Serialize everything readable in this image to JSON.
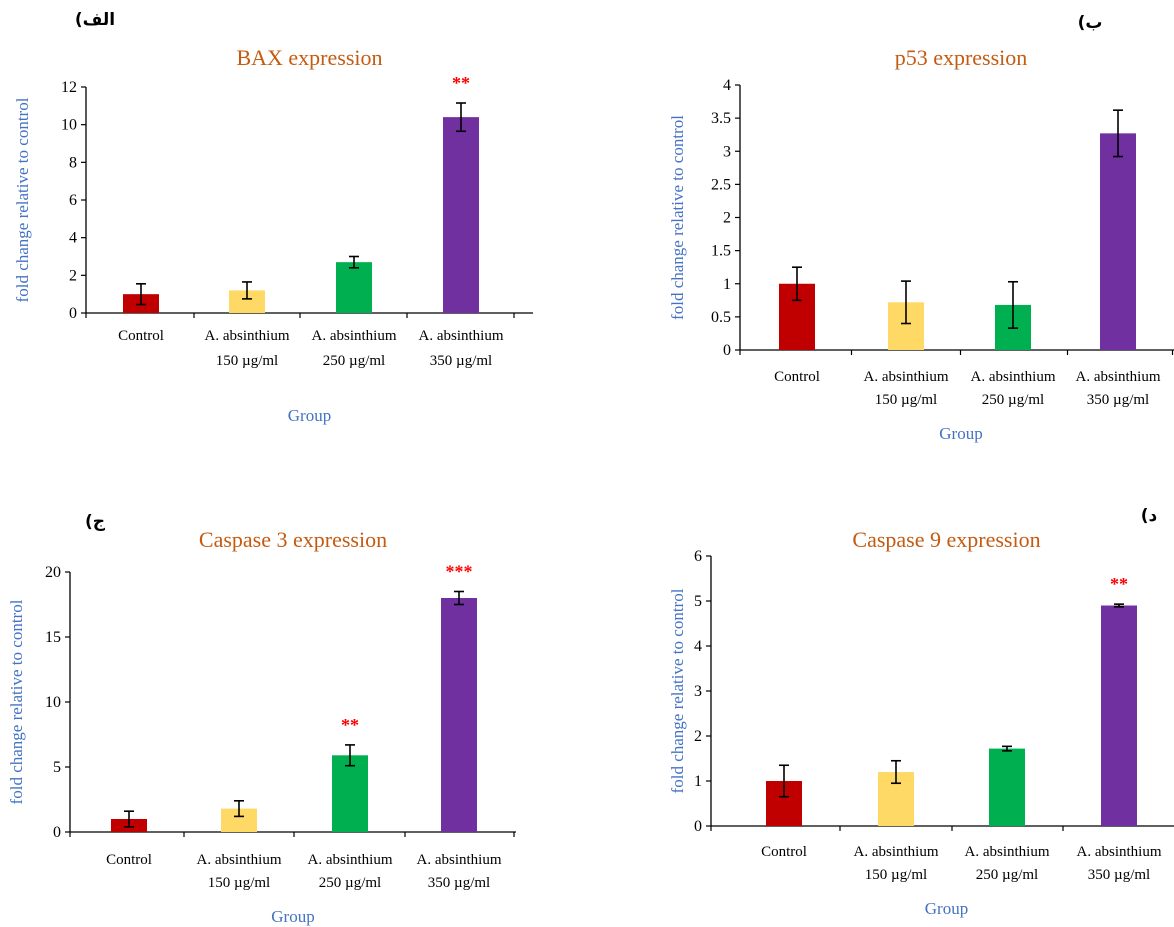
{
  "colors": {
    "control": "#c00000",
    "dose150": "#ffd966",
    "dose250": "#00b050",
    "dose350": "#7030a0",
    "title": "#c55a11",
    "axis_label": "#4472c4",
    "significance": "#ff0000"
  },
  "chart_data": [
    {
      "panel_label": "(الف",
      "type": "bar",
      "title": "BAX expression",
      "xlabel": "Group",
      "ylabel": "fold change relative to control",
      "categories": [
        {
          "line1": "Control",
          "line2": ""
        },
        {
          "line1": "A. absinthium",
          "line2": "150 µg/ml"
        },
        {
          "line1": "A. absinthium",
          "line2": "250 µg/ml"
        },
        {
          "line1": "A. absinthium",
          "line2": "350 µg/ml"
        }
      ],
      "values": [
        1.0,
        1.2,
        2.7,
        10.4
      ],
      "errors": [
        0.55,
        0.45,
        0.3,
        0.75
      ],
      "significance": [
        "",
        "",
        "",
        "**"
      ],
      "ylim": [
        0,
        12
      ],
      "yticks": [
        0,
        2,
        4,
        6,
        8,
        10,
        12
      ],
      "grid": false,
      "legend": "none"
    },
    {
      "panel_label": "(ب",
      "type": "bar",
      "title": "p53 expression",
      "xlabel": "Group",
      "ylabel": "fold change relative to control",
      "categories": [
        {
          "line1": "Control",
          "line2": ""
        },
        {
          "line1": "A. absinthium",
          "line2": "150 µg/ml"
        },
        {
          "line1": "A. absinthium",
          "line2": "250 µg/ml"
        },
        {
          "line1": "A. absinthium",
          "line2": "350 µg/ml"
        }
      ],
      "values": [
        1.0,
        0.72,
        0.68,
        3.27
      ],
      "errors": [
        0.25,
        0.32,
        0.35,
        0.35
      ],
      "significance": [
        "",
        "",
        "",
        ""
      ],
      "ylim": [
        0,
        4
      ],
      "yticks": [
        0,
        0.5,
        1,
        1.5,
        2,
        2.5,
        3,
        3.5,
        4
      ],
      "grid": false,
      "legend": "none"
    },
    {
      "panel_label": "(ج",
      "type": "bar",
      "title": "Caspase 3 expression",
      "xlabel": "Group",
      "ylabel": "fold change relative to control",
      "categories": [
        {
          "line1": "Control",
          "line2": ""
        },
        {
          "line1": "A. absinthium",
          "line2": "150 µg/ml"
        },
        {
          "line1": "A. absinthium",
          "line2": "250 µg/ml"
        },
        {
          "line1": "A. absinthium",
          "line2": "350 µg/ml"
        }
      ],
      "values": [
        1.0,
        1.8,
        5.9,
        18.0
      ],
      "errors": [
        0.6,
        0.6,
        0.8,
        0.5
      ],
      "significance": [
        "",
        "",
        "**",
        "***"
      ],
      "ylim": [
        0,
        20
      ],
      "yticks": [
        0,
        5,
        10,
        15,
        20
      ],
      "grid": false,
      "legend": "none"
    },
    {
      "panel_label": "(د",
      "type": "bar",
      "title": "Caspase 9 expression",
      "xlabel": "Group",
      "ylabel": "fold change relative to control",
      "categories": [
        {
          "line1": "Control",
          "line2": ""
        },
        {
          "line1": "A. absinthium",
          "line2": "150 µg/ml"
        },
        {
          "line1": "A. absinthium",
          "line2": "250 µg/ml"
        },
        {
          "line1": "A. absinthium",
          "line2": "350 µg/ml"
        }
      ],
      "values": [
        1.0,
        1.2,
        1.72,
        4.9
      ],
      "errors": [
        0.35,
        0.25,
        0.05,
        0.03
      ],
      "significance": [
        "",
        "",
        "",
        "**"
      ],
      "ylim": [
        0,
        6
      ],
      "yticks": [
        0,
        1,
        2,
        3,
        4,
        5,
        6
      ],
      "grid": false,
      "legend": "none"
    }
  ]
}
